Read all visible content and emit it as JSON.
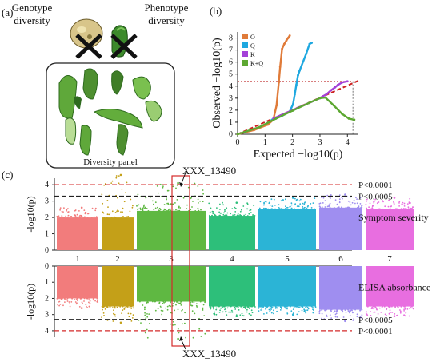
{
  "panel_a": {
    "label": "(a)",
    "genotype_title": [
      "Genotype",
      "diversity"
    ],
    "phenotype_title": [
      "Phenotype",
      "diversity"
    ],
    "box_caption": "Diversity panel",
    "colors": {
      "pod": "#5fa83a",
      "pod_dark": "#2f6b1f",
      "cross": "#111111"
    }
  },
  "panel_b": {
    "label": "(b)",
    "chart_data": {
      "type": "line",
      "title": "",
      "xlabel": "Expected −log10(p)",
      "ylabel": "Observed −log10(p)",
      "xlim": [
        0,
        4.4
      ],
      "ylim": [
        0,
        8.5
      ],
      "xticks": [
        0,
        1,
        2,
        3,
        4
      ],
      "yticks": [
        0,
        1,
        2,
        3,
        4,
        5,
        6,
        7,
        8
      ],
      "legend_position": "top-left",
      "threshold_y": 4.4,
      "threshold_x": 4.2,
      "series": [
        {
          "name": "O",
          "color": "#e07b39",
          "points": [
            [
              0,
              0
            ],
            [
              0.6,
              0.35
            ],
            [
              1.1,
              0.8
            ],
            [
              1.3,
              1.2
            ],
            [
              1.42,
              2.4
            ],
            [
              1.5,
              4.3
            ],
            [
              1.55,
              5.6
            ],
            [
              1.62,
              7.1
            ],
            [
              1.7,
              7.5
            ],
            [
              1.78,
              7.8
            ],
            [
              1.84,
              8.0
            ],
            [
              1.9,
              8.2
            ]
          ]
        },
        {
          "name": "Q",
          "color": "#1fa8e0",
          "points": [
            [
              1.25,
              1.2
            ],
            [
              1.6,
              1.5
            ],
            [
              1.9,
              1.9
            ],
            [
              2.02,
              2.5
            ],
            [
              2.08,
              3.3
            ],
            [
              2.14,
              4.1
            ],
            [
              2.2,
              4.9
            ],
            [
              2.26,
              5.3
            ],
            [
              2.5,
              6.7
            ],
            [
              2.62,
              7.5
            ],
            [
              2.7,
              7.6
            ]
          ]
        },
        {
          "name": "K",
          "color": "#a441d8",
          "points": [
            [
              1.3,
              1.3
            ],
            [
              2.2,
              2.2
            ],
            [
              3.0,
              3.0
            ],
            [
              3.1,
              3.15
            ],
            [
              3.25,
              3.35
            ],
            [
              3.4,
              3.65
            ],
            [
              3.55,
              3.9
            ],
            [
              3.65,
              4.1
            ],
            [
              3.8,
              4.3
            ],
            [
              4.0,
              4.4
            ]
          ]
        },
        {
          "name": "K+Q",
          "color": "#5da832",
          "points": [
            [
              0,
              0
            ],
            [
              0.8,
              0.6
            ],
            [
              1.4,
              1.3
            ],
            [
              2.0,
              1.95
            ],
            [
              2.6,
              2.6
            ],
            [
              3.0,
              3.0
            ],
            [
              3.2,
              3.05
            ],
            [
              3.5,
              2.4
            ],
            [
              3.8,
              1.7
            ],
            [
              4.05,
              1.3
            ],
            [
              4.25,
              1.2
            ]
          ]
        }
      ],
      "reference_line": {
        "color": "#cc2222",
        "points": [
          [
            0,
            0
          ],
          [
            4.4,
            4.45
          ]
        ]
      }
    }
  },
  "panel_c": {
    "label": "(c)",
    "annotation_top": "XXX_13490",
    "annotation_bottom": "XXX_13490",
    "chart_data": [
      {
        "type": "scatter",
        "title": "Symptom severity",
        "ylabel": "-log10(p)",
        "ylim": [
          0,
          4.4
        ],
        "yticks": [
          0,
          1,
          2,
          3,
          4
        ],
        "chromosomes": [
          "1",
          "2",
          "3",
          "4",
          "5",
          "6",
          "7"
        ],
        "thresholds": [
          {
            "label": "P<0.0001",
            "value": 4.0,
            "color": "#d42a2a"
          },
          {
            "label": "P<0.0005",
            "value": 3.3,
            "color": "#222222"
          }
        ],
        "series": [
          {
            "chromosome": "1",
            "color": "#f27c7c",
            "base": 2.0,
            "peak": 2.6
          },
          {
            "chromosome": "2",
            "color": "#c4a018",
            "base": 2.0,
            "peak": 4.6
          },
          {
            "chromosome": "3",
            "color": "#5fb842",
            "base": 2.4,
            "peak": 4.1
          },
          {
            "chromosome": "4",
            "color": "#2dbf7a",
            "base": 2.1,
            "peak": 2.9
          },
          {
            "chromosome": "5",
            "color": "#2bb4d6",
            "base": 2.5,
            "peak": 3.2
          },
          {
            "chromosome": "6",
            "color": "#9f8ef0",
            "base": 2.6,
            "peak": 3.4
          },
          {
            "chromosome": "7",
            "color": "#e86ee0",
            "base": 2.5,
            "peak": 3.2
          }
        ]
      },
      {
        "type": "scatter",
        "title": "ELISA absorbance",
        "ylabel": "-log10(p)",
        "ylim": [
          0,
          4.4
        ],
        "yticks": [
          0,
          1,
          2,
          3,
          4
        ],
        "inverted": true,
        "thresholds": [
          {
            "label": "P<0.0005",
            "value": 3.3,
            "color": "#222222"
          },
          {
            "label": "P<0.0001",
            "value": 4.0,
            "color": "#d42a2a"
          }
        ],
        "series": [
          {
            "chromosome": "1",
            "color": "#f27c7c",
            "base": 2.0,
            "peak": 2.6
          },
          {
            "chromosome": "2",
            "color": "#c4a018",
            "base": 2.5,
            "peak": 3.5
          },
          {
            "chromosome": "3",
            "color": "#5fb842",
            "base": 2.2,
            "peak": 4.5
          },
          {
            "chromosome": "4",
            "color": "#2dbf7a",
            "base": 2.5,
            "peak": 3.1
          },
          {
            "chromosome": "5",
            "color": "#2bb4d6",
            "base": 2.5,
            "peak": 3.0
          },
          {
            "chromosome": "6",
            "color": "#9f8ef0",
            "base": 2.7,
            "peak": 3.4
          },
          {
            "chromosome": "7",
            "color": "#e86ee0",
            "base": 2.5,
            "peak": 3.1
          }
        ]
      }
    ]
  }
}
